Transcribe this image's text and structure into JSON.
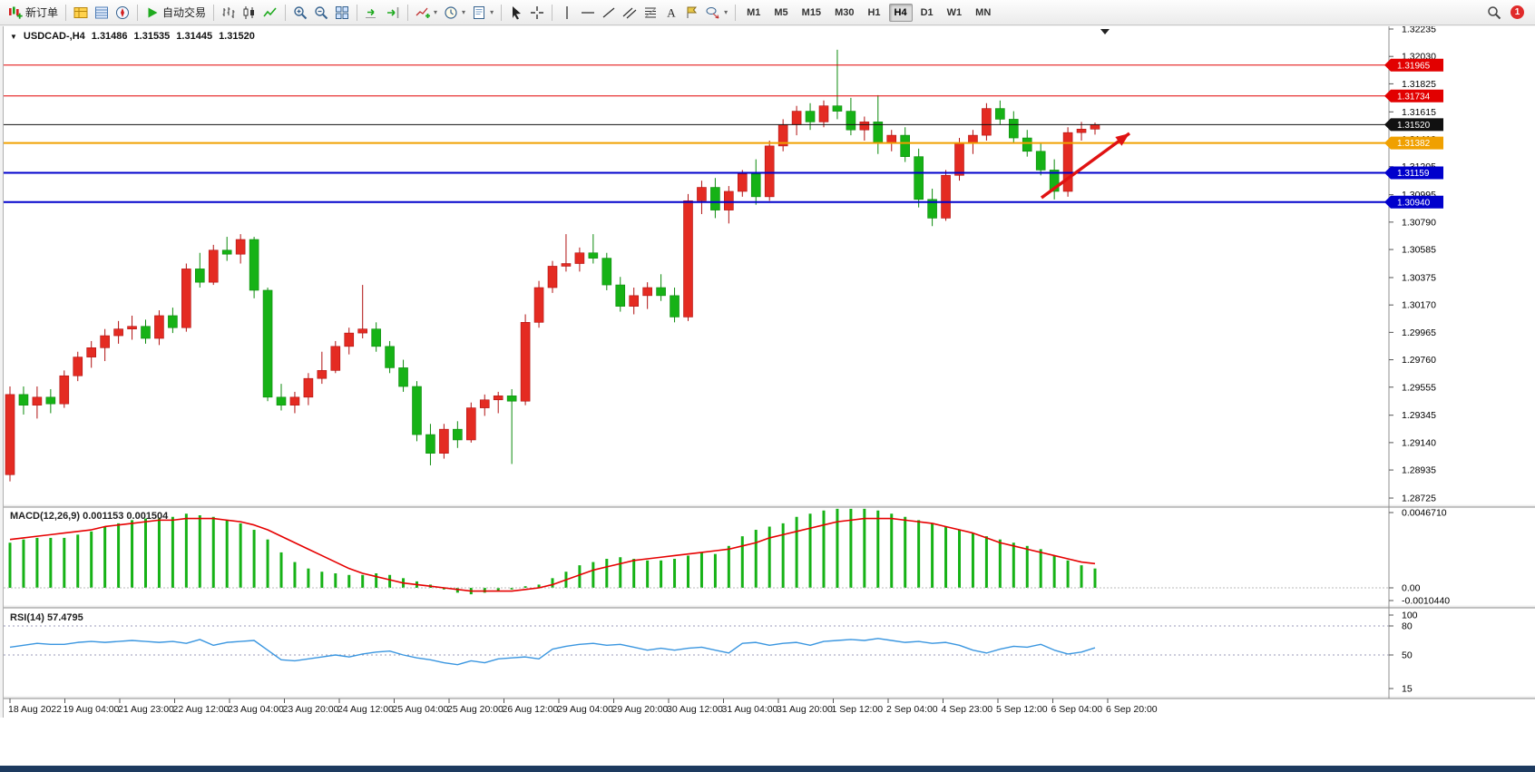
{
  "toolbar": {
    "items": [
      {
        "type": "button",
        "name": "new-order",
        "icon": "new-order",
        "label": "新订单"
      },
      {
        "type": "sep"
      },
      {
        "type": "button",
        "name": "market-watch",
        "icon": "market-watch"
      },
      {
        "type": "button",
        "name": "data-window",
        "icon": "data-window"
      },
      {
        "type": "button",
        "name": "navigator",
        "icon": "navigator"
      },
      {
        "type": "sep"
      },
      {
        "type": "button",
        "name": "auto-trading",
        "icon": "play",
        "label": "自动交易"
      },
      {
        "type": "sep"
      },
      {
        "type": "button",
        "name": "bar-chart",
        "icon": "bars"
      },
      {
        "type": "button",
        "name": "candlestick-chart",
        "icon": "candles"
      },
      {
        "type": "button",
        "name": "line-chart",
        "icon": "line"
      },
      {
        "type": "sep"
      },
      {
        "type": "button",
        "name": "zoom-in",
        "icon": "zoom-in"
      },
      {
        "type": "button",
        "name": "zoom-out",
        "icon": "zoom-out"
      },
      {
        "type": "button",
        "name": "tile-windows",
        "icon": "tile"
      },
      {
        "type": "sep"
      },
      {
        "type": "button",
        "name": "auto-scroll",
        "icon": "auto-scroll"
      },
      {
        "type": "button",
        "name": "chart-shift",
        "icon": "chart-shift"
      },
      {
        "type": "sep"
      },
      {
        "type": "button",
        "name": "indicators",
        "icon": "indicators",
        "dropdown": true
      },
      {
        "type": "button",
        "name": "periods",
        "icon": "clock",
        "dropdown": true
      },
      {
        "type": "button",
        "name": "templates",
        "icon": "template",
        "dropdown": true
      },
      {
        "type": "sep"
      },
      {
        "type": "button",
        "name": "cursor",
        "icon": "cursor"
      },
      {
        "type": "button",
        "name": "crosshair",
        "icon": "crosshair"
      },
      {
        "type": "sep"
      },
      {
        "type": "button",
        "name": "vertical-line",
        "icon": "vline"
      },
      {
        "type": "button",
        "name": "horizontal-line",
        "icon": "hline"
      },
      {
        "type": "button",
        "name": "trend-line",
        "icon": "tline"
      },
      {
        "type": "button",
        "name": "equidistant-channel",
        "icon": "channel"
      },
      {
        "type": "button",
        "name": "fibonacci",
        "icon": "fibo"
      },
      {
        "type": "button",
        "name": "text",
        "icon": "text"
      },
      {
        "type": "button",
        "name": "text-label",
        "icon": "label"
      },
      {
        "type": "button",
        "name": "arrow-shapes",
        "icon": "shapes",
        "dropdown": true
      },
      {
        "type": "sep"
      }
    ],
    "timeframes": [
      "M1",
      "M5",
      "M15",
      "M30",
      "H1",
      "H4",
      "D1",
      "W1",
      "MN"
    ],
    "active_timeframe": "H4",
    "notification_badge": "1"
  },
  "chart": {
    "header": {
      "symbol": "USDCAD-,H4",
      "open": "1.31486",
      "high": "1.31535",
      "low": "1.31445",
      "close": "1.31520"
    },
    "price_axis_labels": [
      "1.32235",
      "1.32030",
      "1.31825",
      "1.31615",
      "1.31410",
      "1.31205",
      "1.30995",
      "1.30790",
      "1.30585",
      "1.30375",
      "1.30170",
      "1.29965",
      "1.29760",
      "1.29555",
      "1.29345",
      "1.29140",
      "1.28935",
      "1.28725"
    ],
    "levels": [
      {
        "value": 1.31965,
        "label": "1.31965",
        "color": "#e20000",
        "width": 1
      },
      {
        "value": 1.31734,
        "label": "1.31734",
        "color": "#e20000",
        "width": 1
      },
      {
        "value": 1.3152,
        "label": "1.31520",
        "color": "#111111",
        "width": 1
      },
      {
        "value": 1.31382,
        "label": "1.31382",
        "color": "#f0a000",
        "width": 2
      },
      {
        "value": 1.31159,
        "label": "1.31159",
        "color": "#0000cc",
        "width": 2
      },
      {
        "value": 1.3094,
        "label": "1.30940",
        "color": "#0000cc",
        "width": 2
      }
    ],
    "time_labels": [
      "18 Aug 2022",
      "19 Aug 04:00",
      "21 Aug 23:00",
      "22 Aug 12:00",
      "23 Aug 04:00",
      "23 Aug 20:00",
      "24 Aug 12:00",
      "25 Aug 04:00",
      "25 Aug 20:00",
      "26 Aug 12:00",
      "29 Aug 04:00",
      "29 Aug 20:00",
      "30 Aug 12:00",
      "31 Aug 04:00",
      "31 Aug 20:00",
      "1 Sep 12:00",
      "2 Sep 04:00",
      "4 Sep 23:00",
      "5 Sep 12:00",
      "6 Sep 04:00",
      "6 Sep 20:00"
    ],
    "colors": {
      "up": "#e42b22",
      "down": "#16b216",
      "wick_up": "#b01010",
      "wick_down": "#0c8a0c",
      "macd_hist": "#16b216",
      "macd_signal": "#e60000",
      "rsi_line": "#3a96e0",
      "axis_text": "#000000",
      "badge_text": "#ffffff"
    }
  },
  "chart_data": {
    "type": "candlestick",
    "title": "USDCAD-,H4",
    "symbol": "USDCAD",
    "timeframe": "H4",
    "ylim": [
      1.28725,
      1.32235
    ],
    "ohlc": [
      [
        1.289,
        1.2956,
        1.2885,
        1.295
      ],
      [
        1.295,
        1.2956,
        1.2935,
        1.2942
      ],
      [
        1.2942,
        1.2956,
        1.2932,
        1.2948
      ],
      [
        1.2948,
        1.2954,
        1.2936,
        1.2943
      ],
      [
        1.2943,
        1.2968,
        1.294,
        1.2964
      ],
      [
        1.2964,
        1.2982,
        1.296,
        1.2978
      ],
      [
        1.2978,
        1.299,
        1.297,
        1.2985
      ],
      [
        1.2985,
        1.2999,
        1.2975,
        1.2994
      ],
      [
        1.2994,
        1.3005,
        1.2988,
        1.2999
      ],
      [
        1.2999,
        1.3009,
        1.2991,
        1.3001
      ],
      [
        1.3001,
        1.3006,
        1.2988,
        1.2992
      ],
      [
        1.2992,
        1.3013,
        1.2987,
        1.3009
      ],
      [
        1.3009,
        1.3015,
        1.2996,
        1.3
      ],
      [
        1.3,
        1.3048,
        1.2997,
        1.3044
      ],
      [
        1.3044,
        1.3056,
        1.303,
        1.3034
      ],
      [
        1.3034,
        1.3062,
        1.3032,
        1.3058
      ],
      [
        1.3058,
        1.3068,
        1.305,
        1.3055
      ],
      [
        1.3055,
        1.307,
        1.3048,
        1.3066
      ],
      [
        1.3066,
        1.3068,
        1.3022,
        1.3028
      ],
      [
        1.3028,
        1.303,
        1.2945,
        1.2948
      ],
      [
        1.2948,
        1.2958,
        1.2938,
        1.2942
      ],
      [
        1.2942,
        1.2952,
        1.2936,
        1.2948
      ],
      [
        1.2948,
        1.2966,
        1.2942,
        1.2962
      ],
      [
        1.2962,
        1.2982,
        1.2958,
        1.2968
      ],
      [
        1.2968,
        1.299,
        1.2966,
        1.2986
      ],
      [
        1.2986,
        1.3,
        1.298,
        1.2996
      ],
      [
        1.2996,
        1.3032,
        1.2992,
        1.2999
      ],
      [
        1.2999,
        1.3004,
        1.2982,
        1.2986
      ],
      [
        1.2986,
        1.299,
        1.2966,
        1.297
      ],
      [
        1.297,
        1.2976,
        1.2952,
        1.2956
      ],
      [
        1.2956,
        1.296,
        1.2915,
        1.292
      ],
      [
        1.292,
        1.2928,
        1.2897,
        1.2906
      ],
      [
        1.2906,
        1.2928,
        1.2902,
        1.2924
      ],
      [
        1.2924,
        1.293,
        1.291,
        1.2916
      ],
      [
        1.2916,
        1.2944,
        1.2914,
        1.294
      ],
      [
        1.294,
        1.295,
        1.2934,
        1.2946
      ],
      [
        1.2946,
        1.2952,
        1.2936,
        1.2949
      ],
      [
        1.2949,
        1.2954,
        1.2898,
        1.2945
      ],
      [
        1.2945,
        1.301,
        1.2942,
        1.3004
      ],
      [
        1.3004,
        1.3035,
        1.3,
        1.303
      ],
      [
        1.303,
        1.305,
        1.3026,
        1.3046
      ],
      [
        1.3046,
        1.307,
        1.3042,
        1.3048
      ],
      [
        1.3048,
        1.306,
        1.3042,
        1.3056
      ],
      [
        1.3056,
        1.307,
        1.3048,
        1.3052
      ],
      [
        1.3052,
        1.3056,
        1.3028,
        1.3032
      ],
      [
        1.3032,
        1.3038,
        1.3012,
        1.3016
      ],
      [
        1.3016,
        1.303,
        1.301,
        1.3024
      ],
      [
        1.3024,
        1.3034,
        1.3014,
        1.303
      ],
      [
        1.303,
        1.304,
        1.302,
        1.3024
      ],
      [
        1.3024,
        1.303,
        1.3004,
        1.3008
      ],
      [
        1.3008,
        1.31,
        1.3005,
        1.3095
      ],
      [
        1.3095,
        1.311,
        1.3085,
        1.3105
      ],
      [
        1.3105,
        1.3112,
        1.3082,
        1.3088
      ],
      [
        1.3088,
        1.3106,
        1.3078,
        1.3102
      ],
      [
        1.3102,
        1.3118,
        1.3098,
        1.3115
      ],
      [
        1.3115,
        1.3126,
        1.3092,
        1.3098
      ],
      [
        1.3098,
        1.314,
        1.3095,
        1.3136
      ],
      [
        1.3136,
        1.3156,
        1.3132,
        1.3152
      ],
      [
        1.3152,
        1.3166,
        1.3144,
        1.3162
      ],
      [
        1.3162,
        1.3168,
        1.3148,
        1.3154
      ],
      [
        1.3154,
        1.317,
        1.315,
        1.3166
      ],
      [
        1.3166,
        1.3208,
        1.3156,
        1.3162
      ],
      [
        1.3162,
        1.3172,
        1.3144,
        1.3148
      ],
      [
        1.3148,
        1.3158,
        1.314,
        1.3154
      ],
      [
        1.3154,
        1.3174,
        1.313,
        1.3138
      ],
      [
        1.3138,
        1.3148,
        1.3132,
        1.3144
      ],
      [
        1.3144,
        1.315,
        1.3124,
        1.3128
      ],
      [
        1.3128,
        1.3134,
        1.309,
        1.3096
      ],
      [
        1.3096,
        1.3104,
        1.3076,
        1.3082
      ],
      [
        1.3082,
        1.3118,
        1.308,
        1.3114
      ],
      [
        1.3114,
        1.3142,
        1.311,
        1.3138
      ],
      [
        1.3138,
        1.3148,
        1.313,
        1.3144
      ],
      [
        1.3144,
        1.3168,
        1.314,
        1.3164
      ],
      [
        1.3164,
        1.317,
        1.3152,
        1.3156
      ],
      [
        1.3156,
        1.3162,
        1.3138,
        1.3142
      ],
      [
        1.3142,
        1.3148,
        1.3128,
        1.3132
      ],
      [
        1.3132,
        1.3138,
        1.3114,
        1.3118
      ],
      [
        1.3118,
        1.3126,
        1.3096,
        1.3102
      ],
      [
        1.3102,
        1.315,
        1.3098,
        1.3146
      ],
      [
        1.3146,
        1.3154,
        1.314,
        1.31486
      ],
      [
        1.31486,
        1.31535,
        1.31445,
        1.3152
      ]
    ],
    "indicators": [
      {
        "name": "MACD",
        "params": "12,26,9",
        "label": "MACD(12,26,9) 0.001153 0.001504",
        "current": "0.001153 0.001504",
        "scale": 0.0001,
        "axis_labels": [
          "0.0046710",
          "0.00",
          "-0.0010440"
        ],
        "values": [
          28,
          30,
          31,
          31,
          31,
          33,
          35,
          38,
          40,
          42,
          43,
          43,
          44,
          46,
          45,
          44,
          42,
          40,
          36,
          30,
          22,
          16,
          12,
          10,
          9,
          8,
          8,
          9,
          8,
          6,
          4,
          2,
          -1,
          -3,
          -4,
          -3,
          -2,
          -1,
          1,
          2,
          6,
          10,
          14,
          16,
          18,
          19,
          18,
          17,
          17,
          18,
          20,
          22,
          21,
          26,
          32,
          36,
          38,
          40,
          44,
          46,
          48,
          49,
          50,
          50,
          48,
          46,
          44,
          42,
          40,
          38,
          36,
          34,
          32,
          30,
          28,
          26,
          24,
          20,
          17,
          14,
          12
        ],
        "signal": [
          30,
          31,
          32,
          33,
          34,
          35,
          36,
          38,
          39,
          40,
          41,
          42,
          42,
          43,
          43,
          43,
          42,
          41,
          39,
          36,
          32,
          28,
          24,
          20,
          16,
          12,
          9,
          7,
          5,
          3,
          2,
          1,
          0,
          -1,
          -2,
          -2,
          -2,
          -2,
          -1,
          0,
          2,
          5,
          8,
          11,
          13,
          15,
          17,
          18,
          19,
          20,
          21,
          22,
          23,
          24,
          26,
          28,
          31,
          33,
          35,
          37,
          39,
          41,
          42,
          43,
          43,
          43,
          42,
          41,
          40,
          38,
          36,
          34,
          31,
          28,
          26,
          24,
          22,
          20,
          18,
          16,
          15
        ]
      },
      {
        "name": "RSI",
        "params": "14",
        "label": "RSI(14) 57.4795",
        "current": "57.4795",
        "axis_labels": [
          "100",
          "80",
          "50",
          "15"
        ],
        "levels": [
          80,
          50
        ],
        "values": [
          58,
          60,
          62,
          61,
          61,
          63,
          64,
          63,
          64,
          65,
          64,
          63,
          64,
          62,
          66,
          60,
          63,
          64,
          65,
          55,
          45,
          44,
          46,
          48,
          50,
          48,
          51,
          53,
          54,
          50,
          47,
          45,
          42,
          40,
          44,
          42,
          46,
          47,
          48,
          46,
          56,
          59,
          61,
          62,
          60,
          61,
          58,
          55,
          57,
          55,
          57,
          58,
          55,
          52,
          62,
          63,
          60,
          62,
          63,
          60,
          64,
          65,
          66,
          65,
          67,
          65,
          63,
          64,
          62,
          63,
          60,
          55,
          52,
          56,
          59,
          58,
          61,
          55,
          51,
          53,
          57.48
        ]
      }
    ]
  },
  "annotation": {
    "type": "arrow",
    "color": "#e01212",
    "from": [
      1144,
      189
    ],
    "to": [
      1241,
      118
    ]
  }
}
